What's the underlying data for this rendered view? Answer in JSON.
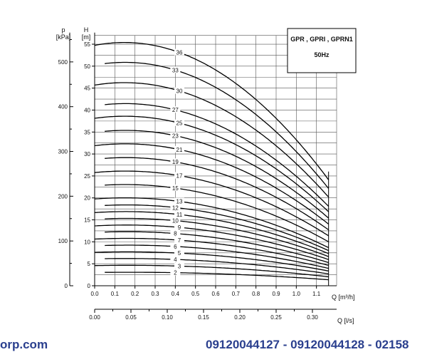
{
  "chart_data": {
    "type": "line",
    "title": "GPR , GPRI , GPRN1",
    "subtitle": "50Hz",
    "y_left_label_symbol": "p",
    "y_left_label_unit": "[kPa]",
    "y_right_label_symbol": "H",
    "y_right_label_unit": "[m]",
    "x_label": "Q [m³/h]",
    "x2_label": "Q [l/s]",
    "xlim": [
      0,
      1.2
    ],
    "ylim": [
      0,
      57
    ],
    "p_ticks": [
      "0",
      "100",
      "200",
      "300",
      "400",
      "500"
    ],
    "h_ticks": [
      "0",
      "5",
      "10",
      "15",
      "20",
      "25",
      "30",
      "35",
      "40",
      "45",
      "50",
      "55"
    ],
    "x_ticks": [
      "0.0",
      "0.1",
      "0.2",
      "0.3",
      "0.4",
      "0.5",
      "0.6",
      "0.7",
      "0.8",
      "0.9",
      "1.0",
      "1.1"
    ],
    "x2_ticks": [
      "0.00",
      "0.05",
      "0.10",
      "0.15",
      "0.20",
      "0.25",
      "0.30"
    ],
    "series": [
      {
        "name": "36",
        "values": [
          [
            0,
            54.5
          ],
          [
            0.15,
            55.5
          ],
          [
            0.35,
            54.5
          ],
          [
            0.55,
            50.5
          ],
          [
            0.75,
            44.0
          ],
          [
            0.95,
            35.5
          ],
          [
            1.15,
            25.0
          ]
        ]
      },
      {
        "name": "33",
        "values": [
          [
            0,
            50.0
          ],
          [
            0.15,
            51.0
          ],
          [
            0.35,
            50.0
          ],
          [
            0.55,
            46.5
          ],
          [
            0.75,
            40.5
          ],
          [
            0.95,
            32.5
          ],
          [
            1.15,
            23.0
          ]
        ]
      },
      {
        "name": "30",
        "values": [
          [
            0,
            45.5
          ],
          [
            0.15,
            46.3
          ],
          [
            0.35,
            45.5
          ],
          [
            0.55,
            42.3
          ],
          [
            0.75,
            36.8
          ],
          [
            0.95,
            29.5
          ],
          [
            1.15,
            21.0
          ]
        ]
      },
      {
        "name": "27",
        "values": [
          [
            0,
            40.8
          ],
          [
            0.15,
            41.5
          ],
          [
            0.35,
            40.8
          ],
          [
            0.55,
            38.0
          ],
          [
            0.75,
            33.0
          ],
          [
            0.95,
            26.5
          ],
          [
            1.15,
            18.8
          ]
        ]
      },
      {
        "name": "25",
        "values": [
          [
            0,
            38.0
          ],
          [
            0.15,
            38.6
          ],
          [
            0.35,
            38.0
          ],
          [
            0.55,
            35.3
          ],
          [
            0.75,
            30.7
          ],
          [
            0.95,
            24.7
          ],
          [
            1.15,
            17.5
          ]
        ]
      },
      {
        "name": "23",
        "values": [
          [
            0,
            34.8
          ],
          [
            0.15,
            35.4
          ],
          [
            0.35,
            34.8
          ],
          [
            0.55,
            32.4
          ],
          [
            0.75,
            28.2
          ],
          [
            0.95,
            22.6
          ],
          [
            1.15,
            16.0
          ]
        ]
      },
      {
        "name": "21",
        "values": [
          [
            0,
            31.8
          ],
          [
            0.15,
            32.3
          ],
          [
            0.35,
            31.8
          ],
          [
            0.55,
            29.6
          ],
          [
            0.75,
            25.7
          ],
          [
            0.95,
            20.6
          ],
          [
            1.15,
            14.6
          ]
        ]
      },
      {
        "name": "19",
        "values": [
          [
            0,
            28.7
          ],
          [
            0.15,
            29.2
          ],
          [
            0.35,
            28.7
          ],
          [
            0.55,
            26.7
          ],
          [
            0.75,
            23.3
          ],
          [
            0.95,
            18.7
          ],
          [
            1.15,
            13.2
          ]
        ]
      },
      {
        "name": "17",
        "values": [
          [
            0,
            25.7
          ],
          [
            0.15,
            26.1
          ],
          [
            0.35,
            25.7
          ],
          [
            0.55,
            23.9
          ],
          [
            0.75,
            20.8
          ],
          [
            0.95,
            16.7
          ],
          [
            1.15,
            11.8
          ]
        ]
      },
      {
        "name": "15",
        "values": [
          [
            0,
            22.7
          ],
          [
            0.15,
            23.0
          ],
          [
            0.35,
            22.7
          ],
          [
            0.55,
            21.1
          ],
          [
            0.75,
            18.3
          ],
          [
            0.95,
            14.7
          ],
          [
            1.15,
            10.4
          ]
        ]
      },
      {
        "name": "13",
        "values": [
          [
            0,
            19.7
          ],
          [
            0.15,
            20.0
          ],
          [
            0.35,
            19.7
          ],
          [
            0.55,
            18.3
          ],
          [
            0.75,
            15.9
          ],
          [
            0.95,
            12.8
          ],
          [
            1.15,
            9.0
          ]
        ]
      },
      {
        "name": "12",
        "values": [
          [
            0,
            18.1
          ],
          [
            0.15,
            18.4
          ],
          [
            0.35,
            18.1
          ],
          [
            0.55,
            16.9
          ],
          [
            0.75,
            14.7
          ],
          [
            0.95,
            11.8
          ],
          [
            1.15,
            8.3
          ]
        ]
      },
      {
        "name": "11",
        "values": [
          [
            0,
            16.6
          ],
          [
            0.15,
            16.9
          ],
          [
            0.35,
            16.6
          ],
          [
            0.55,
            15.5
          ],
          [
            0.75,
            13.4
          ],
          [
            0.95,
            10.8
          ],
          [
            1.15,
            7.6
          ]
        ]
      },
      {
        "name": "10",
        "values": [
          [
            0,
            15.1
          ],
          [
            0.15,
            15.3
          ],
          [
            0.35,
            15.1
          ],
          [
            0.55,
            14.1
          ],
          [
            0.75,
            12.2
          ],
          [
            0.95,
            9.8
          ],
          [
            1.15,
            6.9
          ]
        ]
      },
      {
        "name": "9",
        "values": [
          [
            0,
            13.6
          ],
          [
            0.15,
            13.8
          ],
          [
            0.35,
            13.6
          ],
          [
            0.55,
            12.7
          ],
          [
            0.75,
            11.0
          ],
          [
            0.95,
            8.8
          ],
          [
            1.15,
            6.2
          ]
        ]
      },
      {
        "name": "8",
        "values": [
          [
            0,
            12.1
          ],
          [
            0.15,
            12.3
          ],
          [
            0.35,
            12.1
          ],
          [
            0.55,
            11.3
          ],
          [
            0.75,
            9.8
          ],
          [
            0.95,
            7.8
          ],
          [
            1.15,
            5.5
          ]
        ]
      },
      {
        "name": "7",
        "values": [
          [
            0,
            10.6
          ],
          [
            0.15,
            10.8
          ],
          [
            0.35,
            10.6
          ],
          [
            0.55,
            9.9
          ],
          [
            0.75,
            8.6
          ],
          [
            0.95,
            6.9
          ],
          [
            1.15,
            4.8
          ]
        ]
      },
      {
        "name": "6",
        "values": [
          [
            0,
            9.1
          ],
          [
            0.15,
            9.2
          ],
          [
            0.35,
            9.1
          ],
          [
            0.55,
            8.5
          ],
          [
            0.75,
            7.4
          ],
          [
            0.95,
            5.9
          ],
          [
            1.15,
            4.1
          ]
        ]
      },
      {
        "name": "5",
        "values": [
          [
            0,
            7.6
          ],
          [
            0.15,
            7.7
          ],
          [
            0.35,
            7.6
          ],
          [
            0.55,
            7.1
          ],
          [
            0.75,
            6.2
          ],
          [
            0.95,
            4.9
          ],
          [
            1.15,
            3.5
          ]
        ]
      },
      {
        "name": "4",
        "values": [
          [
            0,
            6.1
          ],
          [
            0.15,
            6.2
          ],
          [
            0.35,
            6.1
          ],
          [
            0.55,
            5.7
          ],
          [
            0.75,
            4.9
          ],
          [
            0.95,
            4.0
          ],
          [
            1.15,
            2.8
          ]
        ]
      },
      {
        "name": "3",
        "values": [
          [
            0,
            4.6
          ],
          [
            0.15,
            4.6
          ],
          [
            0.35,
            4.6
          ],
          [
            0.55,
            4.3
          ],
          [
            0.75,
            3.7
          ],
          [
            0.95,
            3.0
          ],
          [
            1.15,
            2.1
          ]
        ]
      },
      {
        "name": "2",
        "values": [
          [
            0,
            3.0
          ],
          [
            0.15,
            3.1
          ],
          [
            0.35,
            3.0
          ],
          [
            0.55,
            2.8
          ],
          [
            0.75,
            2.5
          ],
          [
            0.95,
            2.0
          ],
          [
            1.15,
            1.4
          ]
        ]
      }
    ]
  },
  "footer": {
    "left": "orp.com",
    "right": "09120044127 - 09120044128 - 02158"
  },
  "colors": {
    "curve": "#000000",
    "grid": "#555555",
    "footer_text": "#2a3f8e"
  }
}
